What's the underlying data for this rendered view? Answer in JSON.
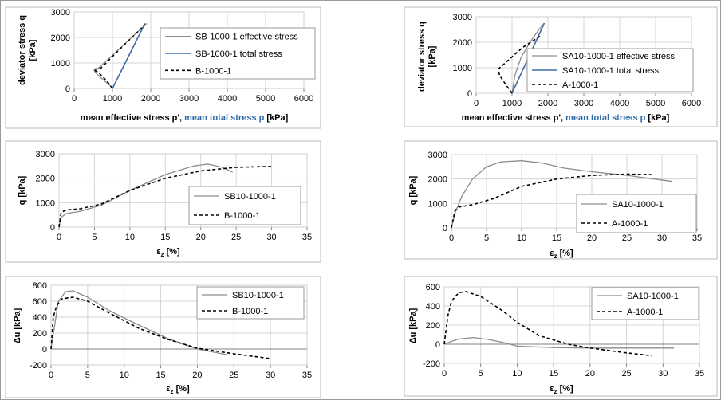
{
  "chart_data": [
    {
      "id": "p1",
      "type": "line",
      "xlabel": "mean effective stress p', ",
      "xlabel_blue": "mean total stress p",
      "xlabel_unit": "  [kPa]",
      "ylabel": [
        "deviator stress q",
        "[kPa]"
      ],
      "xlim": [
        0,
        6000
      ],
      "ylim": [
        0,
        3000
      ],
      "xticks": [
        0,
        1000,
        2000,
        3000,
        4000,
        5000,
        6000
      ],
      "yticks": [
        0,
        1000,
        2000,
        3000
      ],
      "grid": true,
      "legend": "right",
      "series": [
        {
          "name": "SB-1000-1 effective stress",
          "style": "gray",
          "x": [
            1020,
            750,
            600,
            520,
            600,
            1000,
            1500,
            1900
          ],
          "y": [
            0,
            350,
            550,
            700,
            750,
            1300,
            2000,
            2550
          ]
        },
        {
          "name": "SB-1000-1 total stress",
          "style": "blue",
          "x": [
            1000,
            1850
          ],
          "y": [
            0,
            2550
          ]
        },
        {
          "name": "B-1000-1",
          "style": "dash",
          "x": [
            1000,
            850,
            650,
            500,
            700,
            1300,
            1850
          ],
          "y": [
            0,
            300,
            600,
            750,
            800,
            1700,
            2500
          ]
        }
      ]
    },
    {
      "id": "p2",
      "type": "line",
      "xlabel": "mean effective stress p', ",
      "xlabel_blue": "mean total stress p",
      "xlabel_unit": "  [kPa]",
      "ylabel": [
        "deviator stress q",
        "[kPa]"
      ],
      "xlim": [
        0,
        6000
      ],
      "ylim": [
        0,
        3000
      ],
      "xticks": [
        0,
        1000,
        2000,
        3000,
        4000,
        5000,
        6000
      ],
      "yticks": [
        0,
        1000,
        2000,
        3000
      ],
      "grid": true,
      "legend": "right",
      "series": [
        {
          "name": "SA10-1000-1 effective stress",
          "style": "gray",
          "x": [
            1000,
            1080,
            1250,
            1500,
            1750,
            1900
          ],
          "y": [
            0,
            700,
            1400,
            2000,
            2500,
            2750
          ]
        },
        {
          "name": "SA10-1000-1 total stress",
          "style": "blue",
          "x": [
            1000,
            1900
          ],
          "y": [
            0,
            2750
          ]
        },
        {
          "name": "A-1000-1",
          "style": "dash",
          "x": [
            1000,
            820,
            650,
            620,
            900,
            1300,
            1800
          ],
          "y": [
            0,
            350,
            700,
            950,
            1300,
            1800,
            2250
          ]
        }
      ]
    },
    {
      "id": "p3",
      "type": "line",
      "xlabel": "ε",
      "xlabel_sub": "z",
      "xlabel_unit": " [%]",
      "ylabel": [
        "q [kPa]"
      ],
      "xlim": [
        0,
        35
      ],
      "ylim": [
        0,
        3000
      ],
      "xticks": [
        0,
        5,
        10,
        15,
        20,
        25,
        30,
        35
      ],
      "yticks": [
        0,
        1000,
        2000,
        3000
      ],
      "grid": true,
      "legend": "bottom-right",
      "series": [
        {
          "name": "SB10-1000-1",
          "style": "gray",
          "x": [
            0,
            0.3,
            1,
            3,
            6,
            10,
            15,
            19,
            21,
            23,
            24.5
          ],
          "y": [
            0,
            400,
            550,
            650,
            900,
            1500,
            2150,
            2500,
            2580,
            2450,
            2250
          ]
        },
        {
          "name": "B-1000-1",
          "style": "dash",
          "x": [
            0,
            0.3,
            1,
            3,
            6,
            10,
            15,
            20,
            25,
            30
          ],
          "y": [
            0,
            600,
            700,
            750,
            950,
            1500,
            2000,
            2300,
            2450,
            2480
          ]
        }
      ]
    },
    {
      "id": "p4",
      "type": "line",
      "xlabel": "ε",
      "xlabel_sub": "z",
      "xlabel_unit": " [%]",
      "ylabel": [
        "q [kPa]"
      ],
      "xlim": [
        0,
        35
      ],
      "ylim": [
        0,
        3000
      ],
      "xticks": [
        0,
        5,
        10,
        15,
        20,
        25,
        30,
        35
      ],
      "yticks": [
        0,
        1000,
        2000,
        3000
      ],
      "grid": true,
      "legend": "bottom-right",
      "series": [
        {
          "name": "SA10-1000-1",
          "style": "gray",
          "x": [
            0,
            0.5,
            1.5,
            3,
            5,
            7,
            10,
            13,
            16,
            20,
            25,
            31.5
          ],
          "y": [
            0,
            600,
            1300,
            2000,
            2500,
            2700,
            2750,
            2650,
            2450,
            2300,
            2150,
            1900
          ]
        },
        {
          "name": "A-1000-1",
          "style": "dash",
          "x": [
            0,
            0.5,
            1,
            3,
            6,
            10,
            15,
            20,
            25,
            28.5
          ],
          "y": [
            0,
            700,
            850,
            950,
            1200,
            1700,
            2000,
            2150,
            2200,
            2180
          ]
        }
      ]
    },
    {
      "id": "p5",
      "type": "line",
      "xlabel": "ε",
      "xlabel_sub": "z",
      "xlabel_unit": " [%]",
      "ylabel": [
        "Δu [kPa]"
      ],
      "xlim": [
        0,
        35
      ],
      "ylim": [
        -200,
        800
      ],
      "xticks": [
        0,
        5,
        10,
        15,
        20,
        25,
        30,
        35
      ],
      "yticks": [
        -200,
        0,
        200,
        400,
        600,
        800
      ],
      "grid": true,
      "legend": "top-right",
      "series": [
        {
          "name": "SB10-1000-1",
          "style": "gray",
          "x": [
            0,
            0.5,
            1,
            2,
            3,
            5,
            8,
            12,
            16,
            20,
            24
          ],
          "y": [
            0,
            300,
            600,
            720,
            730,
            650,
            480,
            300,
            130,
            0,
            -70
          ]
        },
        {
          "name": "B-1000-1",
          "style": "dash",
          "x": [
            0,
            0.3,
            0.8,
            1.5,
            3,
            5,
            8,
            12,
            16,
            20,
            25,
            30
          ],
          "y": [
            0,
            400,
            550,
            630,
            650,
            600,
            450,
            260,
            120,
            10,
            -60,
            -120
          ]
        }
      ]
    },
    {
      "id": "p6",
      "type": "line",
      "xlabel": "ε",
      "xlabel_sub": "z",
      "xlabel_unit": " [%]",
      "ylabel": [
        "Δu [kPa]"
      ],
      "xlim": [
        0,
        35
      ],
      "ylim": [
        -200,
        600
      ],
      "xticks": [
        0,
        5,
        10,
        15,
        20,
        25,
        30,
        35
      ],
      "yticks": [
        -200,
        0,
        200,
        400,
        600
      ],
      "grid": true,
      "legend": "top-right",
      "series": [
        {
          "name": "SA10-1000-1",
          "style": "gray",
          "x": [
            0,
            1,
            2,
            4,
            6,
            8,
            10,
            15,
            20,
            25,
            31.5
          ],
          "y": [
            0,
            30,
            55,
            70,
            50,
            20,
            -20,
            -35,
            -40,
            -40,
            -40
          ]
        },
        {
          "name": "A-1000-1",
          "style": "dash",
          "x": [
            0,
            0.5,
            1,
            2,
            3,
            5,
            8,
            10,
            13,
            17,
            20,
            25,
            28.5
          ],
          "y": [
            0,
            300,
            450,
            540,
            550,
            500,
            350,
            230,
            90,
            0,
            -40,
            -90,
            -120
          ]
        }
      ]
    }
  ]
}
